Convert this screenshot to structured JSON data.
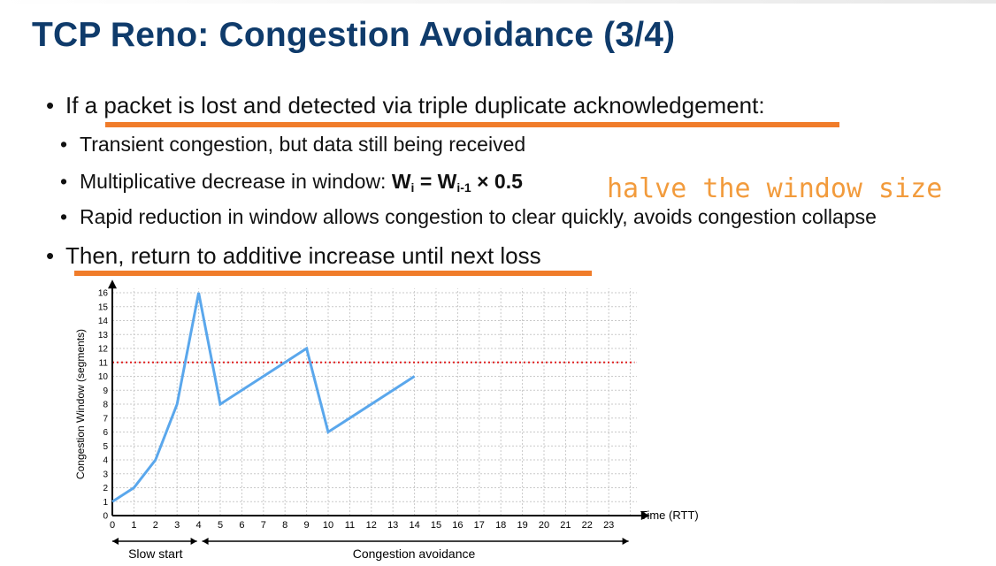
{
  "slide": {
    "title": "TCP Reno: Congestion Avoidance (3/4)",
    "bullet1": "If a packet is lost and detected via triple duplicate acknowledgement:",
    "sub1": "Transient congestion, but data still being received",
    "sub2_text": "Multiplicative decrease in window: ",
    "sub2_w1": "W",
    "sub2_i": "i",
    "sub2_eq": " = ",
    "sub2_w2": "W",
    "sub2_im1": "i-1",
    "sub2_tail": " × 0.5",
    "sub3": "Rapid reduction in window allows congestion to clear quickly, avoids congestion collapse",
    "bullet2": "Then, return to additive increase until next loss",
    "annotation": "halve the window size",
    "bullet_char": "•"
  },
  "colors": {
    "title": "#0f3b6b",
    "underline": "#f07c2a",
    "annotation": "#f29b3c",
    "line": "#5aa7ec",
    "threshold": "#e02020"
  },
  "chart_data": {
    "type": "line",
    "ylabel": "Congestion Window (segments)",
    "xlabel": "Time (RTT)",
    "xlim": [
      0,
      23
    ],
    "ylim": [
      0,
      16
    ],
    "x_ticks": [
      "0",
      "1",
      "2",
      "3",
      "4",
      "5",
      "6",
      "7",
      "8",
      "9",
      "10",
      "11",
      "12",
      "13",
      "14",
      "15",
      "16",
      "17",
      "18",
      "19",
      "20",
      "21",
      "22",
      "23"
    ],
    "y_ticks": [
      "0",
      "1",
      "2",
      "3",
      "4",
      "5",
      "6",
      "7",
      "8",
      "9",
      "10",
      "11",
      "12",
      "13",
      "14",
      "15",
      "16"
    ],
    "grid": true,
    "threshold": 11,
    "series": [
      {
        "x": [
          0,
          1,
          2,
          3,
          4,
          5,
          9,
          10,
          14
        ],
        "y": [
          1,
          2,
          4,
          8,
          16,
          8,
          12,
          6,
          10
        ]
      }
    ],
    "phases": [
      {
        "label": "Slow start",
        "from": 0,
        "to": 4
      },
      {
        "label": "Congestion avoidance",
        "from": 4,
        "to": 24
      }
    ]
  }
}
